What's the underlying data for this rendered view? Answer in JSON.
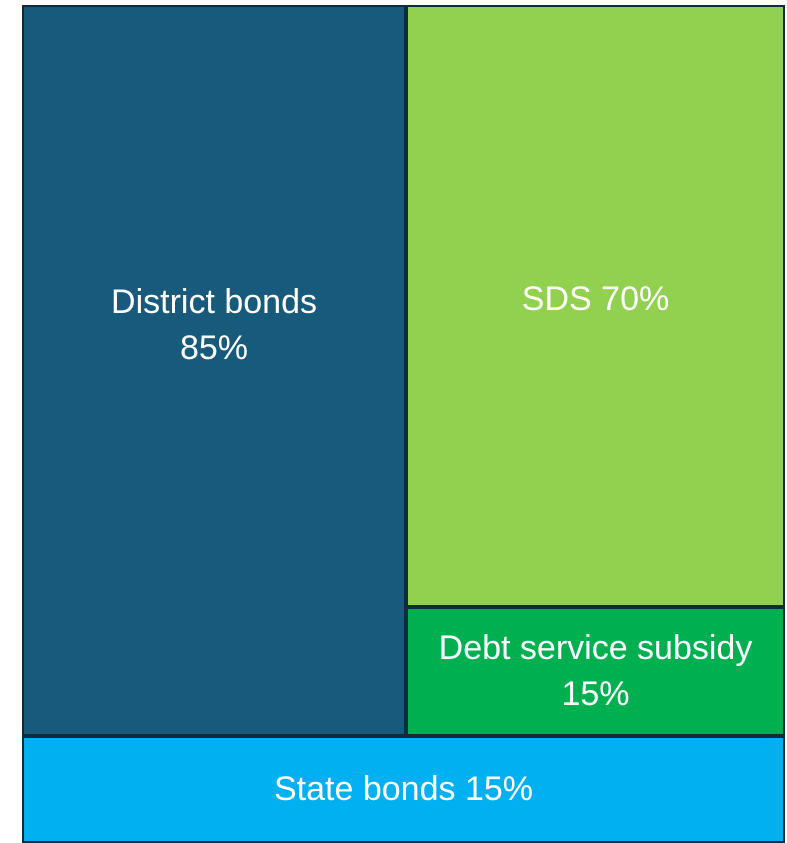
{
  "chart_data": {
    "type": "treemap",
    "categories": [
      "District bonds",
      "SDS",
      "Debt service subsidy",
      "State bonds"
    ],
    "values": [
      85,
      70,
      15,
      15
    ],
    "value_labels": [
      "85%",
      "70%",
      "15%",
      "15%"
    ],
    "colors": [
      "#175a7b",
      "#92d050",
      "#00b050",
      "#00b0f0"
    ]
  }
}
